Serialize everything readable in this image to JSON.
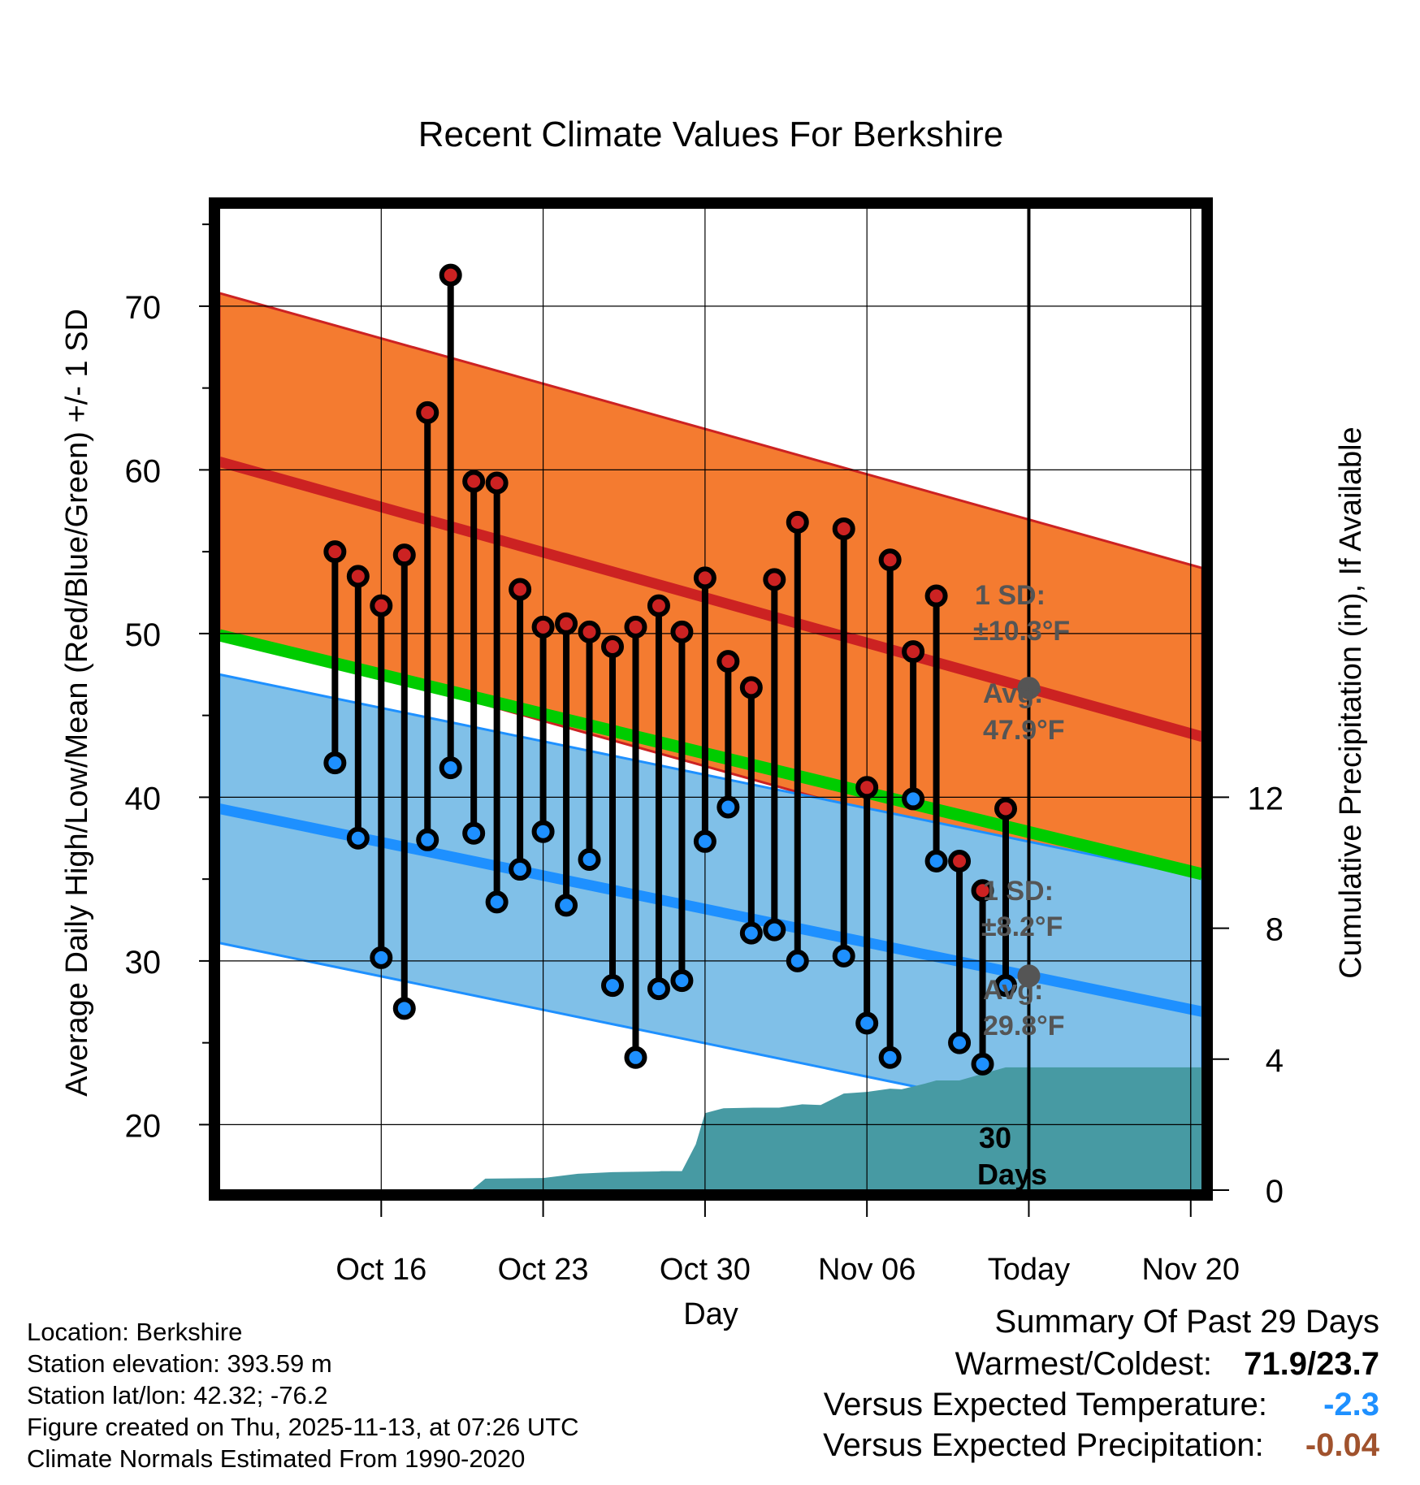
{
  "chart_data": {
    "type": "line",
    "title": "Recent Climate Values For Berkshire",
    "xlabel": "Day",
    "ylabel_left": "Average Daily High/Low/Mean (Red/Blue/Green) +/- 1 SD",
    "ylabel_right": "Cumulative Precipitation (in), If Available",
    "x_range_days": [
      -35,
      7.5
    ],
    "ylim_left": [
      16,
      76
    ],
    "ylim_right": [
      0,
      30
    ],
    "x_tick_days": [
      -28,
      -21,
      -14,
      -7,
      0,
      7
    ],
    "x_tick_labels": [
      "Oct 16",
      "Oct 23",
      "Oct 30",
      "Nov 06",
      "Today",
      "Nov 20"
    ],
    "y_ticks_left": [
      20,
      30,
      40,
      50,
      60,
      70
    ],
    "y_ticks_right": [
      0,
      4,
      8,
      12
    ],
    "today_day": 0,
    "normals": {
      "high_avg": [
        60.5,
        43.7
      ],
      "high_sd": 10.3,
      "low_avg": [
        39.3,
        26.9
      ],
      "low_sd": 8.2,
      "mean_avg": [
        49.9,
        35.3
      ]
    },
    "annotations": {
      "high_sd_label": "1 SD:",
      "high_sd_value": "±10.3°F",
      "high_avg_label": "Avg:",
      "high_avg_value": "47.9°F",
      "low_sd_label": "1 SD:",
      "low_sd_value": "±8.2°F",
      "low_avg_label": "Avg:",
      "low_avg_value": "29.8°F",
      "period_number": "30",
      "period_unit": "Days"
    },
    "series": [
      {
        "name": "Daily High",
        "color": "#cc2222",
        "day": [
          -30,
          -29,
          -28,
          -27,
          -26,
          -25,
          -24,
          -23,
          -22,
          -21,
          -20,
          -19,
          -18,
          -17,
          -16,
          -15,
          -14,
          -13,
          -12,
          -11,
          -10,
          -8,
          -7,
          -6,
          -5,
          -4,
          -3,
          -2,
          -1
        ],
        "values": [
          55.0,
          53.5,
          51.7,
          54.8,
          63.5,
          71.9,
          59.3,
          59.2,
          52.7,
          50.4,
          50.6,
          50.1,
          49.2,
          50.4,
          51.7,
          50.1,
          53.4,
          48.3,
          46.7,
          53.3,
          56.8,
          56.4,
          40.6,
          54.5,
          48.9,
          52.3,
          36.1,
          34.3,
          39.3
        ]
      },
      {
        "name": "Daily Low",
        "color": "#1e90ff",
        "day": [
          -30,
          -29,
          -28,
          -27,
          -26,
          -25,
          -24,
          -23,
          -22,
          -21,
          -20,
          -19,
          -18,
          -17,
          -16,
          -15,
          -14,
          -13,
          -12,
          -11,
          -10,
          -8,
          -7,
          -6,
          -5,
          -4,
          -3,
          -2,
          -1
        ],
        "values": [
          42.1,
          37.5,
          30.2,
          27.1,
          37.4,
          41.8,
          37.8,
          33.6,
          35.6,
          37.9,
          33.4,
          36.2,
          28.5,
          24.1,
          28.3,
          28.8,
          37.3,
          39.4,
          31.7,
          31.9,
          30.0,
          30.3,
          26.2,
          24.1,
          39.9,
          36.1,
          25.0,
          23.7,
          28.5
        ]
      },
      {
        "name": "Cumulative Precipitation",
        "color": "#479aa3",
        "unit": "in",
        "day": [
          -32.5,
          -31.5,
          -24.1,
          -23.5,
          -21,
          -19.5,
          -18,
          -16,
          -15.9,
          -15,
          -14.4,
          -14,
          -13.2,
          -11.9,
          -10.8,
          -10,
          -9.8,
          -9,
          -8,
          -7,
          -6.5,
          -6,
          -5.5,
          -4.5,
          -4,
          -3,
          -2,
          -1,
          0,
          7.5
        ],
        "values": [
          0,
          0,
          0,
          0.35,
          0.37,
          0.5,
          0.55,
          0.57,
          0.58,
          0.58,
          1.4,
          2.35,
          2.5,
          2.52,
          2.52,
          2.6,
          2.62,
          2.6,
          2.95,
          3.0,
          3.05,
          3.1,
          3.08,
          3.25,
          3.35,
          3.35,
          3.55,
          3.75,
          3.75,
          3.75
        ]
      }
    ]
  },
  "footer": {
    "location": "Location: Berkshire",
    "elevation": "Station elevation: 393.59 m",
    "latlon": "Station lat/lon: 42.32; -76.2",
    "created": "Figure created on Thu, 2025-11-13, at 07:26 UTC",
    "normals_period": "Climate Normals Estimated From 1990-2020"
  },
  "summary": {
    "title": "Summary Of Past 29 Days",
    "warmest_coldest_label": "Warmest/Coldest:",
    "warmest_coldest_value": "71.9/23.7",
    "temp_label": "Versus Expected Temperature:",
    "temp_value": "-2.3",
    "temp_color": "#1e90ff",
    "precip_label": "Versus Expected Precipitation:",
    "precip_value": "-0.04",
    "precip_color": "#a0522d"
  },
  "colors": {
    "high_band": "#f47b30",
    "high_line": "#cc2222",
    "low_band": "#80c0e8",
    "low_line": "#1e90ff",
    "mean_line": "#00cc00",
    "precip": "#479aa3",
    "marker_high": "#cc2222",
    "marker_low": "#1e90ff",
    "annotation_text": "#555555"
  }
}
